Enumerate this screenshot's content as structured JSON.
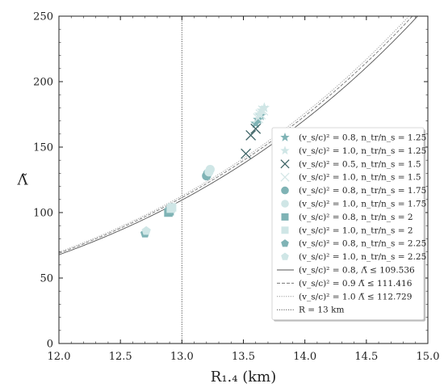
{
  "chart_data": {
    "type": "scatter",
    "xlabel": "R₁.₄ (km)",
    "ylabel": "Λ̃",
    "xlim": [
      12.0,
      15.0
    ],
    "ylim": [
      0,
      250
    ],
    "xticks": [
      "12.0",
      "12.5",
      "13.0",
      "13.5",
      "14.0",
      "14.5",
      "15.0"
    ],
    "yticks": [
      "0",
      "50",
      "100",
      "150",
      "200",
      "250"
    ],
    "grid": false,
    "legend_position": "lower-right",
    "series": [
      {
        "name": "(v_s/c)² = 0.8,  n_tr/n_s = 1.25",
        "marker": "star",
        "color": "#7fb3b5",
        "points": [
          [
            13.6,
            168
          ],
          [
            13.62,
            171
          ],
          [
            13.64,
            174
          ]
        ]
      },
      {
        "name": "(v_s/c)² = 1.0,  n_tr/n_s = 1.25",
        "marker": "star",
        "color": "#cfe6e6",
        "points": [
          [
            13.63,
            175
          ],
          [
            13.65,
            178
          ],
          [
            13.67,
            180
          ]
        ]
      },
      {
        "name": "(v_s/c)² = 0.5,  n_tr/n_s = 1.5",
        "marker": "x",
        "color": "#3e6466",
        "points": [
          [
            13.52,
            145
          ],
          [
            13.56,
            159
          ],
          [
            13.6,
            164
          ]
        ]
      },
      {
        "name": "(v_s/c)² = 1.0,  n_tr/n_s = 1.5",
        "marker": "x",
        "color": "#d3e6e6",
        "points": [
          [
            13.62,
            172
          ],
          [
            13.64,
            175
          ],
          [
            13.66,
            178
          ]
        ]
      },
      {
        "name": "(v_s/c)² = 0.8,  n_tr/n_s = 1.75",
        "marker": "circle",
        "color": "#7fb3b5",
        "points": [
          [
            13.2,
            128
          ],
          [
            13.21,
            130
          ]
        ]
      },
      {
        "name": "(v_s/c)² = 1.0,  n_tr/n_s = 1.75",
        "marker": "circle",
        "color": "#cfe6e6",
        "points": [
          [
            13.22,
            131
          ],
          [
            13.23,
            133
          ]
        ]
      },
      {
        "name": "(v_s/c)² = 0.8,  n_tr/n_s = 2",
        "marker": "square",
        "color": "#7fb3b5",
        "points": [
          [
            12.89,
            100
          ],
          [
            12.9,
            101
          ]
        ]
      },
      {
        "name": "(v_s/c)² = 1.0,  n_tr/n_s = 2",
        "marker": "square",
        "color": "#cfe6e6",
        "points": [
          [
            12.91,
            103
          ],
          [
            12.92,
            104
          ]
        ]
      },
      {
        "name": "(v_s/c)² = 0.8,  n_tr/n_s = 2.25",
        "marker": "pentagon",
        "color": "#7fb3b5",
        "points": [
          [
            12.7,
            84
          ]
        ]
      },
      {
        "name": "(v_s/c)² = 1.0,  n_tr/n_s = 2.25",
        "marker": "pentagon",
        "color": "#cfe6e6",
        "points": [
          [
            12.71,
            86
          ]
        ]
      }
    ],
    "curves": [
      {
        "name": "(v_s/c)² = 0.8,  Λ̃ ≤ 109.536",
        "style": "solid",
        "color": "#555555",
        "a": 109.536
      },
      {
        "name": "(v_s/c)² = 0.9  Λ̃ ≤ 111.416",
        "style": "dashed",
        "color": "#777777",
        "a": 111.416
      },
      {
        "name": "(v_s/c)² = 1.0  Λ̃ ≤ 112.729",
        "style": "dotted",
        "color": "#999999",
        "a": 112.729
      }
    ],
    "vline": {
      "name": "R = 13 km",
      "x": 13.0,
      "style": "dotted",
      "color": "#555555"
    }
  }
}
